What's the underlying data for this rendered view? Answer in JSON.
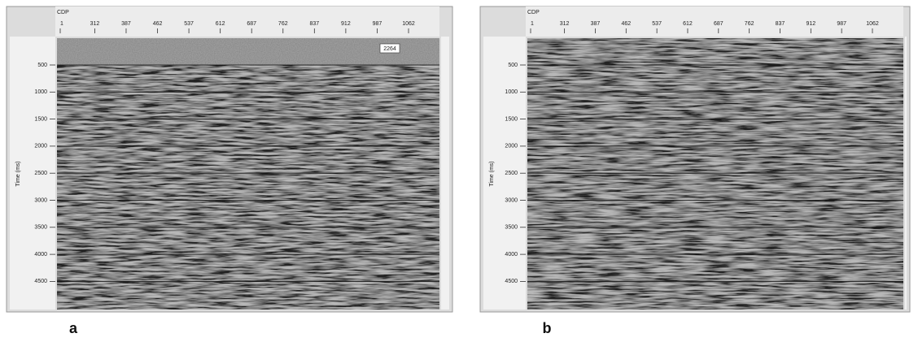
{
  "panels": [
    {
      "label": "a",
      "x_title": "CDP",
      "y_title": "Time (ms)",
      "annotation": "2264",
      "x_ticks": [
        "1",
        "312",
        "387",
        "462",
        "537",
        "612",
        "687",
        "762",
        "837",
        "912",
        "987",
        "1062"
      ],
      "y_ticks": [
        "500",
        "1000",
        "1500",
        "2000",
        "2500",
        "3000",
        "3500",
        "4000",
        "4500"
      ]
    },
    {
      "label": "b",
      "x_title": "CDP",
      "y_title": "Time (ms)",
      "x_ticks": [
        "1",
        "312",
        "387",
        "462",
        "537",
        "612",
        "687",
        "762",
        "837",
        "912",
        "987",
        "1062"
      ],
      "y_ticks": [
        "500",
        "1000",
        "1500",
        "2000",
        "2500",
        "3000",
        "3500",
        "4000",
        "4500"
      ]
    }
  ]
}
